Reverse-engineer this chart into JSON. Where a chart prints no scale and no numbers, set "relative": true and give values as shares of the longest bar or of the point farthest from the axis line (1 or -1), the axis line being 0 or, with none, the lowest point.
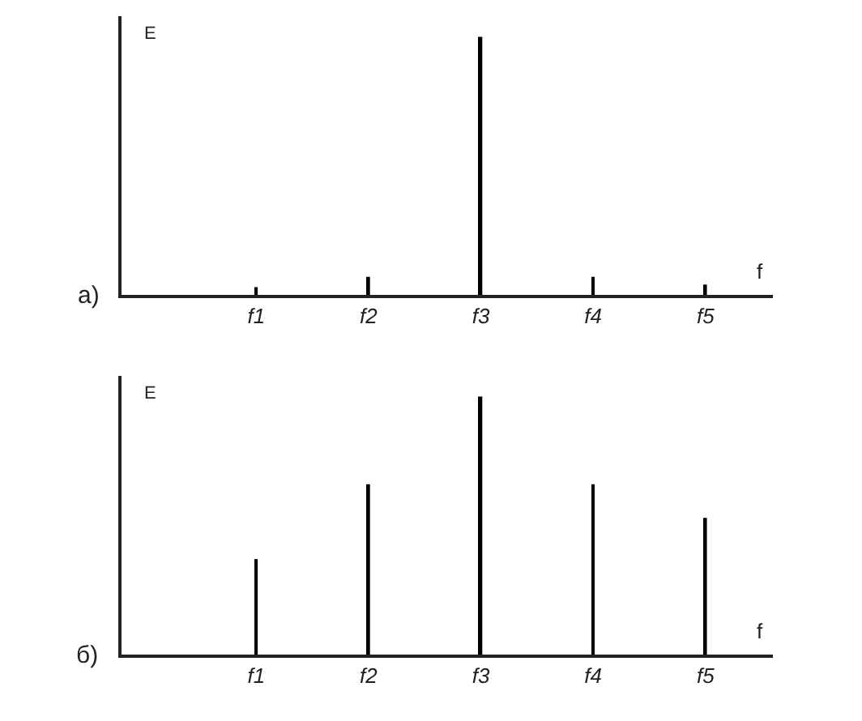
{
  "chart_data": [
    {
      "type": "bar",
      "relative": true,
      "categories": [
        "f1",
        "f2",
        "f3",
        "f4",
        "f5"
      ],
      "values": [
        0.03,
        0.07,
        1,
        0.07,
        0.04
      ],
      "color": "#000000",
      "xlabel": "f",
      "ylabel": "E",
      "annotations": [
        "а)"
      ],
      "grid": false,
      "legend": false
    },
    {
      "type": "bar",
      "relative": true,
      "categories": [
        "f1",
        "f2",
        "f3",
        "f4",
        "f5"
      ],
      "values": [
        0.37,
        0.66,
        1,
        0.66,
        0.53
      ],
      "color": "#000000",
      "xlabel": "f",
      "ylabel": "E",
      "annotations": [
        "б)"
      ],
      "grid": false,
      "legend": false
    }
  ]
}
